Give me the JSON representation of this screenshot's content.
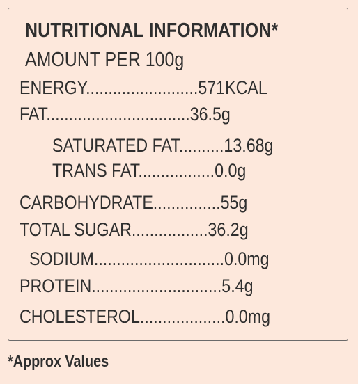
{
  "title": "NUTRITIONAL INFORMATION*",
  "serving": "AMOUNT PER 100g",
  "rows": [
    {
      "line": "ENERGY.........................571KCAL"
    },
    {
      "line": "FAT................................36.5g"
    },
    {
      "line": "SATURATED FAT..........13.68g"
    },
    {
      "line": "TRANS FAT.................0.0g"
    },
    {
      "line": "CARBOHYDRATE...............55g"
    },
    {
      "line": "TOTAL SUGAR.................36.2g"
    },
    {
      "line": "SODIUM.............................0.0mg"
    },
    {
      "line": "PROTEIN.............................5.4g"
    },
    {
      "line": "CHOLESTEROL...................0.0mg"
    }
  ],
  "footnote": "*Approx Values"
}
